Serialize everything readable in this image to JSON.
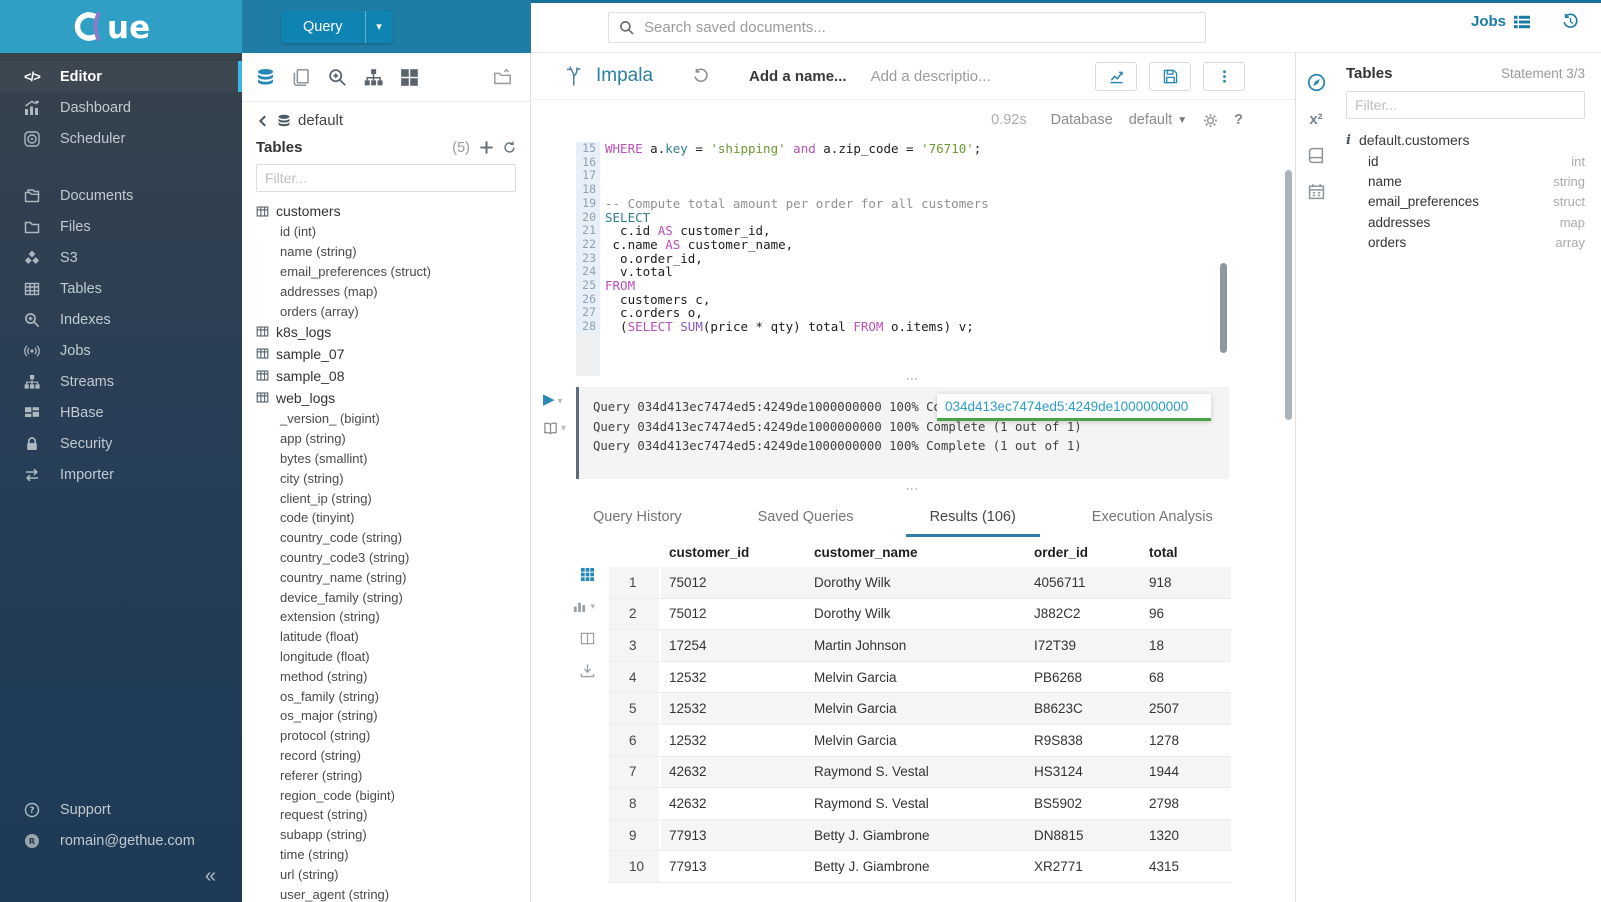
{
  "colors": {
    "accent_blue": "#2787b5",
    "topbar_blue": "#1f7da5",
    "logo_cyan": "#2f9fc6",
    "active_tab_underline": "#2b7fa7",
    "keyword": "#bb4fbb",
    "string": "#6d9a2f",
    "tooltip_link": "#2b9ec7",
    "tooltip_underline": "#4aa148"
  },
  "topbar": {
    "query_label": "Query",
    "search_placeholder": "Search saved documents...",
    "jobs_label": "Jobs"
  },
  "sidebar": {
    "items": [
      {
        "label": "Editor",
        "icon": "code-icon",
        "active": true
      },
      {
        "label": "Dashboard",
        "icon": "dashboard-icon"
      },
      {
        "label": "Scheduler",
        "icon": "scheduler-icon"
      },
      {
        "gap": true
      },
      {
        "label": "Documents",
        "icon": "documents-icon"
      },
      {
        "label": "Files",
        "icon": "files-icon"
      },
      {
        "label": "S3",
        "icon": "s3-icon"
      },
      {
        "label": "Tables",
        "icon": "tables-icon"
      },
      {
        "label": "Indexes",
        "icon": "indexes-icon"
      },
      {
        "label": "Jobs",
        "icon": "jobs-signal-icon"
      },
      {
        "label": "Streams",
        "icon": "streams-icon"
      },
      {
        "label": "HBase",
        "icon": "hbase-icon"
      },
      {
        "label": "Security",
        "icon": "security-icon"
      },
      {
        "label": "Importer",
        "icon": "importer-icon"
      }
    ],
    "support_label": "Support",
    "user_email": "romain@gethue.com"
  },
  "assist": {
    "database": "default",
    "tables_label": "Tables",
    "tables_count": "(5)",
    "filter_placeholder": "Filter...",
    "tree": [
      {
        "name": "customers",
        "columns": [
          "id (int)",
          "name (string)",
          "email_preferences (struct)",
          "addresses (map)",
          "orders (array)"
        ]
      },
      {
        "name": "k8s_logs",
        "columns": []
      },
      {
        "name": "sample_07",
        "columns": []
      },
      {
        "name": "sample_08",
        "columns": []
      },
      {
        "name": "web_logs",
        "columns": [
          "_version_ (bigint)",
          "app (string)",
          "bytes (smallint)",
          "city (string)",
          "client_ip (string)",
          "code (tinyint)",
          "country_code (string)",
          "country_code3 (string)",
          "country_name (string)",
          "device_family (string)",
          "extension (string)",
          "latitude (float)",
          "longitude (float)",
          "method (string)",
          "os_family (string)",
          "os_major (string)",
          "protocol (string)",
          "record (string)",
          "referer (string)",
          "region_code (bigint)",
          "request (string)",
          "subapp (string)",
          "time (string)",
          "url (string)",
          "user_agent (string)"
        ]
      }
    ]
  },
  "editor": {
    "engine": "Impala",
    "name_placeholder": "Add a name...",
    "description_placeholder": "Add a descriptio...",
    "duration": "0.92s",
    "database_label": "Database",
    "database_value": "default",
    "code": [
      {
        "n": 15,
        "tokens": [
          {
            "t": "WHERE",
            "c": "kw"
          },
          {
            "t": " a."
          },
          {
            "t": "key",
            "c": "fn"
          },
          {
            "t": " = "
          },
          {
            "t": "'shipping'",
            "c": "str"
          },
          {
            "t": " "
          },
          {
            "t": "and",
            "c": "kw"
          },
          {
            "t": " a.zip_code = "
          },
          {
            "t": "'76710'",
            "c": "str"
          },
          {
            "t": ";"
          }
        ]
      },
      {
        "n": 16,
        "tokens": []
      },
      {
        "n": 17,
        "tokens": []
      },
      {
        "n": 18,
        "tokens": []
      },
      {
        "n": 19,
        "tokens": [
          {
            "t": "-- Compute total amount per order for all customers",
            "c": "com"
          }
        ]
      },
      {
        "n": 20,
        "tokens": [
          {
            "t": "SELECT",
            "c": "kw2"
          }
        ]
      },
      {
        "n": 21,
        "tokens": [
          {
            "t": "  c.id "
          },
          {
            "t": "AS",
            "c": "kw"
          },
          {
            "t": " customer_id,"
          }
        ]
      },
      {
        "n": 22,
        "tokens": [
          {
            "t": " c.name "
          },
          {
            "t": "AS",
            "c": "kw"
          },
          {
            "t": " customer_name,"
          }
        ]
      },
      {
        "n": 23,
        "tokens": [
          {
            "t": "  o.order_id,"
          }
        ]
      },
      {
        "n": 24,
        "tokens": [
          {
            "t": "  v.total"
          }
        ]
      },
      {
        "n": 25,
        "tokens": [
          {
            "t": "FROM",
            "c": "kw"
          }
        ]
      },
      {
        "n": 26,
        "tokens": [
          {
            "t": "  customers c,"
          }
        ]
      },
      {
        "n": 27,
        "tokens": [
          {
            "t": "  c.orders o,"
          }
        ]
      },
      {
        "n": 28,
        "tokens": [
          {
            "t": "  ("
          },
          {
            "t": "SELECT",
            "c": "kw"
          },
          {
            "t": " "
          },
          {
            "t": "SUM",
            "c": "fn2"
          },
          {
            "t": "(price * qty) total "
          },
          {
            "t": "FROM",
            "c": "kw"
          },
          {
            "t": " o.items) v;"
          }
        ]
      }
    ]
  },
  "logs": {
    "lines": [
      "Query 034d413ec7474ed5:4249de1000000000 100% Complete (1 out of 1)",
      "Query 034d413ec7474ed5:4249de1000000000 100% Complete (1 out of 1)",
      "Query 034d413ec7474ed5:4249de1000000000 100% Complete (1 out of 1)"
    ],
    "tooltip": "034d413ec7474ed5:4249de1000000000"
  },
  "tabs": {
    "items": [
      "Query History",
      "Saved Queries",
      "Results (106)",
      "Execution Analysis"
    ],
    "active_index": 2
  },
  "results": {
    "columns": [
      "customer_id",
      "customer_name",
      "order_id",
      "total"
    ],
    "rows": [
      [
        "1",
        "75012",
        "Dorothy Wilk",
        "4056711",
        "918"
      ],
      [
        "2",
        "75012",
        "Dorothy Wilk",
        "J882C2",
        "96"
      ],
      [
        "3",
        "17254",
        "Martin Johnson",
        "I72T39",
        "18"
      ],
      [
        "4",
        "12532",
        "Melvin Garcia",
        "PB6268",
        "68"
      ],
      [
        "5",
        "12532",
        "Melvin Garcia",
        "B8623C",
        "2507"
      ],
      [
        "6",
        "12532",
        "Melvin Garcia",
        "R9S838",
        "1278"
      ],
      [
        "7",
        "42632",
        "Raymond S. Vestal",
        "HS3124",
        "1944"
      ],
      [
        "8",
        "42632",
        "Raymond S. Vestal",
        "BS5902",
        "2798"
      ],
      [
        "9",
        "77913",
        "Betty J. Giambrone",
        "DN8815",
        "1320"
      ],
      [
        "10",
        "77913",
        "Betty J. Giambrone",
        "XR2771",
        "4315"
      ]
    ]
  },
  "right_panel": {
    "title": "Tables",
    "statement": "Statement 3/3",
    "filter_placeholder": "Filter...",
    "table_name": "default.customers",
    "fields": [
      {
        "name": "id",
        "type": "int"
      },
      {
        "name": "name",
        "type": "string"
      },
      {
        "name": "email_preferences",
        "type": "struct"
      },
      {
        "name": "addresses",
        "type": "map"
      },
      {
        "name": "orders",
        "type": "array"
      }
    ]
  }
}
